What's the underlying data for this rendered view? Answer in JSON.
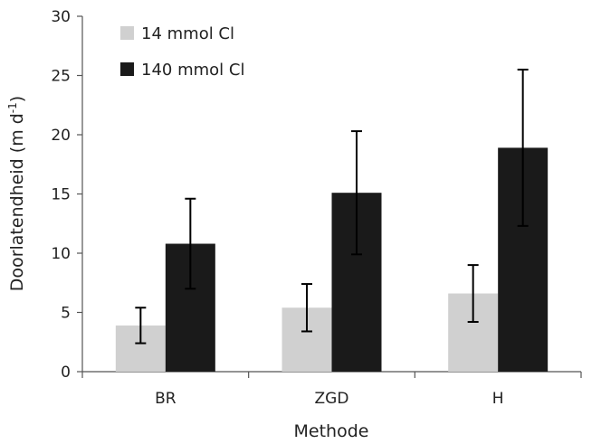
{
  "chart_data": {
    "type": "bar",
    "categories": [
      "BR",
      "ZGD",
      "H"
    ],
    "series": [
      {
        "name": "14 mmol Cl",
        "color": "#d0d0d0",
        "values": [
          3.9,
          5.4,
          6.6
        ],
        "error": [
          1.5,
          2.0,
          2.4
        ]
      },
      {
        "name": "140 mmol Cl",
        "color": "#1a1a1a",
        "values": [
          10.8,
          15.1,
          18.9
        ],
        "error": [
          3.8,
          5.2,
          6.6
        ]
      }
    ],
    "xlabel": "Methode",
    "ylabel_main": "Doorlatendheid (m d",
    "ylabel_sup": "-1",
    "ylabel_close": ")",
    "ylim": [
      0,
      30
    ],
    "yticks": [
      0,
      5,
      10,
      15,
      20,
      25,
      30
    ],
    "grid": false,
    "legend_position": "top-left"
  }
}
